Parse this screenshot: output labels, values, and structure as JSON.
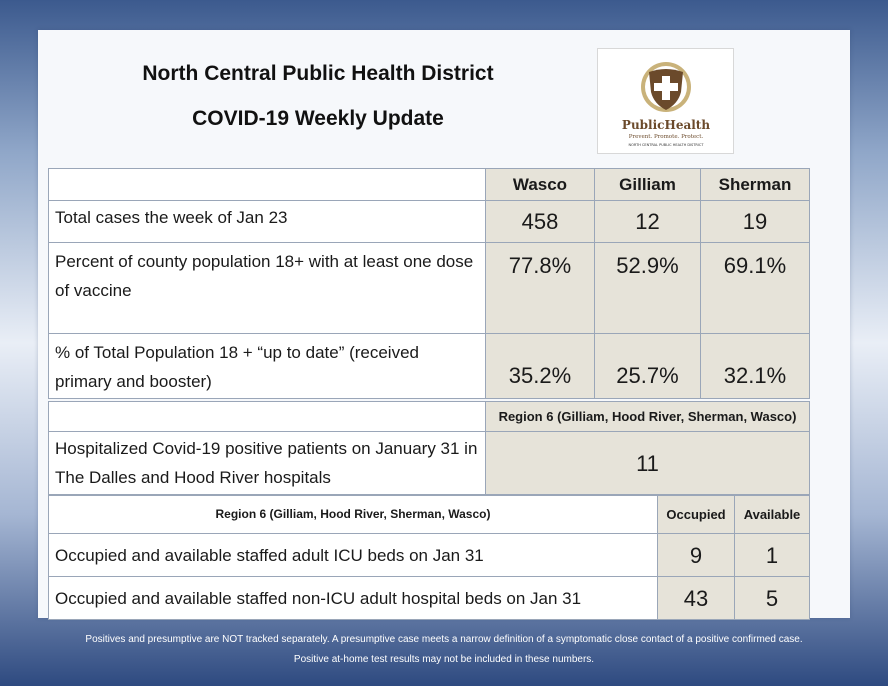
{
  "header": {
    "title_line1": "North Central Public Health District",
    "title_line2": "COVID-19 Weekly Update"
  },
  "logo": {
    "icon": "shield-cross-icon",
    "brand_text": "PublicHealth",
    "tagline": "Prevent. Promote. Protect.",
    "district": "NORTH CENTRAL PUBLIC HEALTH DISTRICT",
    "colors": {
      "shield": "#6b4a2b",
      "ring": "#c9b27a"
    }
  },
  "county_table": {
    "columns": [
      "Wasco",
      "Gilliam",
      "Sherman"
    ],
    "rows": [
      {
        "label": "Total cases the week of Jan 23",
        "values": [
          "458",
          "12",
          "19"
        ]
      },
      {
        "label": "Percent of county population 18+ with at least one dose of vaccine",
        "values": [
          "77.8%",
          "52.9%",
          "69.1%"
        ]
      },
      {
        "label": "% of Total Population 18 + “up to date” (received primary and booster)",
        "values": [
          "35.2%",
          "25.7%",
          "32.1%"
        ]
      }
    ]
  },
  "region_table": {
    "header": "Region 6 (Gilliam, Hood River, Sherman, Wasco)",
    "label": "Hospitalized Covid-19 positive patients on January 31 in The Dalles and Hood River hospitals",
    "value": "11"
  },
  "beds_table": {
    "header": "Region 6 (Gilliam, Hood River, Sherman, Wasco)",
    "columns": [
      "Occupied",
      "Available"
    ],
    "rows": [
      {
        "label": "Occupied and available staffed adult ICU beds on Jan 31",
        "values": [
          "9",
          "1"
        ]
      },
      {
        "label": "Occupied and available staffed non-ICU adult hospital beds on Jan 31",
        "values": [
          "43",
          "5"
        ]
      }
    ]
  },
  "footer": {
    "line1": "Positives and presumptive are NOT tracked separately.  A presumptive case meets a narrow definition of a symptomatic close contact of a positive confirmed case.",
    "line2": "Positive at-home test results may not be included in these numbers."
  }
}
